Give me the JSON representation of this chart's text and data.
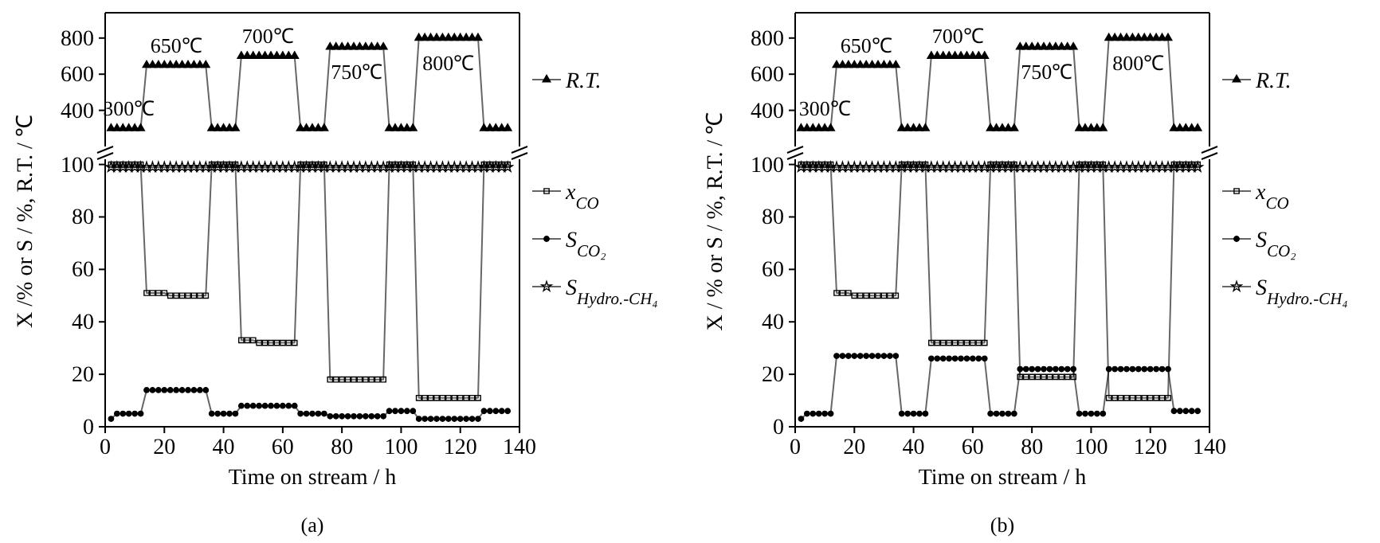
{
  "chart_data": [
    {
      "type": "line",
      "x": [
        2,
        4,
        6,
        8,
        10,
        12,
        14,
        16,
        18,
        20,
        22,
        24,
        26,
        28,
        30,
        32,
        34,
        36,
        38,
        40,
        42,
        44,
        46,
        48,
        50,
        52,
        54,
        56,
        58,
        60,
        62,
        64,
        66,
        68,
        70,
        72,
        74,
        76,
        78,
        80,
        82,
        84,
        86,
        88,
        90,
        92,
        94,
        96,
        98,
        100,
        102,
        104,
        106,
        108,
        110,
        112,
        114,
        116,
        118,
        120,
        122,
        124,
        126,
        128,
        130,
        132,
        134,
        136
      ],
      "xlim": [
        0,
        140
      ],
      "ylim": [
        200,
        940
      ],
      "yticks": [
        400,
        600,
        800
      ],
      "tick_labels": "y",
      "legend": "right",
      "series": [
        {
          "name": "R.T.",
          "color": "#000000",
          "marker": "triangle",
          "values": [
            300,
            300,
            300,
            300,
            300,
            300,
            650,
            650,
            650,
            650,
            650,
            650,
            650,
            650,
            650,
            650,
            650,
            300,
            300,
            300,
            300,
            300,
            700,
            700,
            700,
            700,
            700,
            700,
            700,
            700,
            700,
            700,
            300,
            300,
            300,
            300,
            300,
            750,
            750,
            750,
            750,
            750,
            750,
            750,
            750,
            750,
            750,
            300,
            300,
            300,
            300,
            300,
            800,
            800,
            800,
            800,
            800,
            800,
            800,
            800,
            800,
            800,
            800,
            300,
            300,
            300,
            300,
            300
          ]
        }
      ],
      "annotations": [
        {
          "text": "300℃",
          "x": 8,
          "y": 300
        },
        {
          "text": "650℃",
          "x": 24,
          "y": 650
        },
        {
          "text": "700℃",
          "x": 55,
          "y": 700
        },
        {
          "text": "750℃",
          "x": 85,
          "y": 750
        },
        {
          "text": "800℃",
          "x": 116,
          "y": 800
        }
      ]
    },
    {
      "type": "line",
      "x": [
        2,
        4,
        6,
        8,
        10,
        12,
        14,
        16,
        18,
        20,
        22,
        24,
        26,
        28,
        30,
        32,
        34,
        36,
        38,
        40,
        42,
        44,
        46,
        48,
        50,
        52,
        54,
        56,
        58,
        60,
        62,
        64,
        66,
        68,
        70,
        72,
        74,
        76,
        78,
        80,
        82,
        84,
        86,
        88,
        90,
        92,
        94,
        96,
        98,
        100,
        102,
        104,
        106,
        108,
        110,
        112,
        114,
        116,
        118,
        120,
        122,
        124,
        126,
        128,
        130,
        132,
        134,
        136
      ],
      "xlim": [
        0,
        140
      ],
      "xticks": [
        0,
        20,
        40,
        60,
        80,
        100,
        120,
        140
      ],
      "ylim": [
        0,
        102
      ],
      "yticks": [
        0,
        20,
        40,
        60,
        80,
        100
      ],
      "xlabel": "Time on stream / h",
      "ylabel": "X /% or S / %, R.T. / ℃",
      "legend": "right",
      "series": [
        {
          "name": "x$_{CO}$",
          "color": "#000000",
          "marker": "square",
          "values": [
            100,
            100,
            100,
            100,
            100,
            100,
            51,
            51,
            51,
            51,
            50,
            50,
            50,
            50,
            50,
            50,
            50,
            100,
            100,
            100,
            100,
            100,
            33,
            33,
            33,
            32,
            32,
            32,
            32,
            32,
            32,
            32,
            100,
            100,
            100,
            100,
            100,
            18,
            18,
            18,
            18,
            18,
            18,
            18,
            18,
            18,
            18,
            100,
            100,
            100,
            100,
            100,
            11,
            11,
            11,
            11,
            11,
            11,
            11,
            11,
            11,
            11,
            11,
            100,
            100,
            100,
            100,
            100
          ]
        },
        {
          "name": "S$_{CO₂}$",
          "color": "#000000",
          "marker": "circle",
          "values": [
            3,
            5,
            5,
            5,
            5,
            5,
            14,
            14,
            14,
            14,
            14,
            14,
            14,
            14,
            14,
            14,
            14,
            5,
            5,
            5,
            5,
            5,
            8,
            8,
            8,
            8,
            8,
            8,
            8,
            8,
            8,
            8,
            5,
            5,
            5,
            5,
            5,
            4,
            4,
            4,
            4,
            4,
            4,
            4,
            4,
            4,
            4,
            6,
            6,
            6,
            6,
            6,
            3,
            3,
            3,
            3,
            3,
            3,
            3,
            3,
            3,
            3,
            3,
            6,
            6,
            6,
            6,
            6
          ]
        },
        {
          "name": "S$_{Hydro.-CH₄}$",
          "color": "#000000",
          "marker": "star",
          "values": [
            99,
            99,
            99,
            99,
            99,
            99,
            99,
            99,
            99,
            99,
            99,
            99,
            99,
            99,
            99,
            99,
            99,
            99,
            99,
            99,
            99,
            99,
            99,
            99,
            99,
            99,
            99,
            99,
            99,
            99,
            99,
            99,
            99,
            99,
            99,
            99,
            99,
            99,
            99,
            99,
            99,
            99,
            99,
            99,
            99,
            99,
            99,
            99,
            99,
            99,
            99,
            99,
            99,
            99,
            99,
            99,
            99,
            99,
            99,
            99,
            99,
            99,
            99,
            99,
            99,
            99,
            99,
            99
          ]
        }
      ],
      "annotations": [
        "(a)"
      ]
    },
    {
      "type": "line",
      "x": [
        2,
        4,
        6,
        8,
        10,
        12,
        14,
        16,
        18,
        20,
        22,
        24,
        26,
        28,
        30,
        32,
        34,
        36,
        38,
        40,
        42,
        44,
        46,
        48,
        50,
        52,
        54,
        56,
        58,
        60,
        62,
        64,
        66,
        68,
        70,
        72,
        74,
        76,
        78,
        80,
        82,
        84,
        86,
        88,
        90,
        92,
        94,
        96,
        98,
        100,
        102,
        104,
        106,
        108,
        110,
        112,
        114,
        116,
        118,
        120,
        122,
        124,
        126,
        128,
        130,
        132,
        134,
        136
      ],
      "xlim": [
        0,
        140
      ],
      "ylim": [
        200,
        940
      ],
      "yticks": [
        400,
        600,
        800
      ],
      "tick_labels": "y",
      "legend": "right",
      "series": [
        {
          "name": "R.T.",
          "color": "#000000",
          "marker": "triangle",
          "values": [
            300,
            300,
            300,
            300,
            300,
            300,
            650,
            650,
            650,
            650,
            650,
            650,
            650,
            650,
            650,
            650,
            650,
            300,
            300,
            300,
            300,
            300,
            700,
            700,
            700,
            700,
            700,
            700,
            700,
            700,
            700,
            700,
            300,
            300,
            300,
            300,
            300,
            750,
            750,
            750,
            750,
            750,
            750,
            750,
            750,
            750,
            750,
            300,
            300,
            300,
            300,
            300,
            800,
            800,
            800,
            800,
            800,
            800,
            800,
            800,
            800,
            800,
            800,
            300,
            300,
            300,
            300,
            300
          ]
        }
      ],
      "annotations": [
        {
          "text": "300℃",
          "x": 10,
          "y": 300
        },
        {
          "text": "650℃",
          "x": 24,
          "y": 650
        },
        {
          "text": "700℃",
          "x": 55,
          "y": 700
        },
        {
          "text": "750℃",
          "x": 85,
          "y": 750
        },
        {
          "text": "800℃",
          "x": 116,
          "y": 800
        }
      ]
    },
    {
      "type": "line",
      "x": [
        2,
        4,
        6,
        8,
        10,
        12,
        14,
        16,
        18,
        20,
        22,
        24,
        26,
        28,
        30,
        32,
        34,
        36,
        38,
        40,
        42,
        44,
        46,
        48,
        50,
        52,
        54,
        56,
        58,
        60,
        62,
        64,
        66,
        68,
        70,
        72,
        74,
        76,
        78,
        80,
        82,
        84,
        86,
        88,
        90,
        92,
        94,
        96,
        98,
        100,
        102,
        104,
        106,
        108,
        110,
        112,
        114,
        116,
        118,
        120,
        122,
        124,
        126,
        128,
        130,
        132,
        134,
        136
      ],
      "xlim": [
        0,
        140
      ],
      "xticks": [
        0,
        20,
        40,
        60,
        80,
        100,
        120,
        140
      ],
      "ylim": [
        0,
        102
      ],
      "yticks": [
        0,
        20,
        40,
        60,
        80,
        100
      ],
      "xlabel": "Time on stream / h",
      "ylabel": "X / % or S / %, R.T. / ℃",
      "legend": "right",
      "series": [
        {
          "name": "x$_{CO}$",
          "color": "#000000",
          "marker": "square",
          "values": [
            100,
            100,
            100,
            100,
            100,
            100,
            51,
            51,
            51,
            50,
            50,
            50,
            50,
            50,
            50,
            50,
            50,
            100,
            100,
            100,
            100,
            100,
            32,
            32,
            32,
            32,
            32,
            32,
            32,
            32,
            32,
            32,
            100,
            100,
            100,
            100,
            100,
            19,
            19,
            19,
            19,
            19,
            19,
            19,
            19,
            19,
            19,
            100,
            100,
            100,
            100,
            100,
            11,
            11,
            11,
            11,
            11,
            11,
            11,
            11,
            11,
            11,
            11,
            100,
            100,
            100,
            100,
            100
          ]
        },
        {
          "name": "S$_{CO₂}$",
          "color": "#000000",
          "marker": "circle",
          "values": [
            3,
            5,
            5,
            5,
            5,
            5,
            27,
            27,
            27,
            27,
            27,
            27,
            27,
            27,
            27,
            27,
            27,
            5,
            5,
            5,
            5,
            5,
            26,
            26,
            26,
            26,
            26,
            26,
            26,
            26,
            26,
            26,
            5,
            5,
            5,
            5,
            5,
            22,
            22,
            22,
            22,
            22,
            22,
            22,
            22,
            22,
            22,
            5,
            5,
            5,
            5,
            5,
            22,
            22,
            22,
            22,
            22,
            22,
            22,
            22,
            22,
            22,
            22,
            6,
            6,
            6,
            6,
            6
          ]
        },
        {
          "name": "S$_{Hydro.-CH₄}$",
          "color": "#000000",
          "marker": "star",
          "values": [
            99,
            99,
            99,
            99,
            99,
            99,
            99,
            99,
            99,
            99,
            99,
            99,
            99,
            99,
            99,
            99,
            99,
            99,
            99,
            99,
            99,
            99,
            99,
            99,
            99,
            99,
            99,
            99,
            99,
            99,
            99,
            99,
            99,
            99,
            99,
            99,
            99,
            99,
            99,
            99,
            99,
            99,
            99,
            99,
            99,
            99,
            99,
            99,
            99,
            99,
            99,
            99,
            99,
            99,
            99,
            99,
            99,
            99,
            99,
            99,
            99,
            99,
            99,
            99,
            99,
            99,
            99,
            99
          ]
        }
      ],
      "annotations": [
        "(b)"
      ]
    }
  ]
}
